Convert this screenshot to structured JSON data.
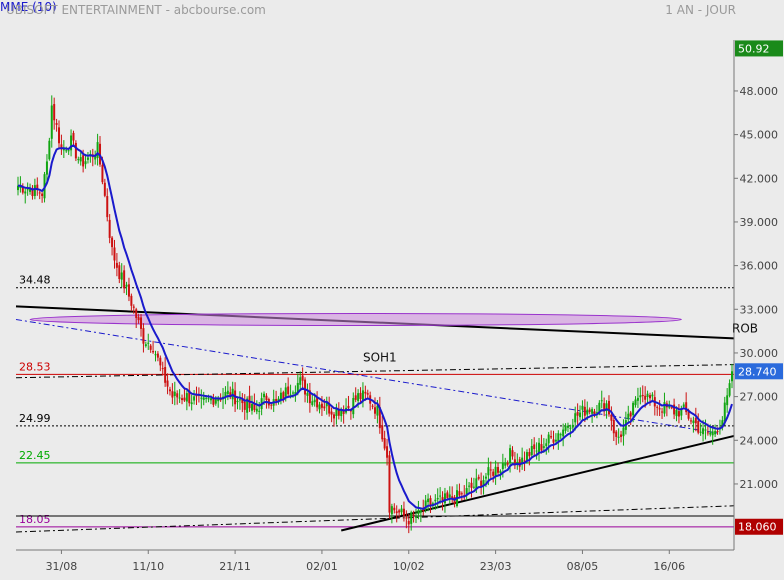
{
  "header": {
    "title": "UBISOFT ENTERTAINMENT - abcbourse.com",
    "period": "1 AN - JOUR",
    "indicator": "MME (10)"
  },
  "chart_data": {
    "type": "candlestick",
    "title": "UBISOFT ENTERTAINMENT - abcbourse.com",
    "ylim": [
      16.6,
      51.5
    ],
    "y_ticks": [
      "48.000",
      "45.000",
      "42.000",
      "39.000",
      "36.000",
      "33.000",
      "30.000",
      "27.000",
      "24.000",
      "21.000"
    ],
    "x_ticks": [
      "31/08",
      "11/10",
      "21/11",
      "02/01",
      "10/02",
      "23/03",
      "08/05",
      "16/06"
    ],
    "price_labels": {
      "high": "50.92",
      "last": "28.740",
      "low": "18.060"
    },
    "levels": [
      {
        "label": "34.48",
        "value": 34.48,
        "color": "#000000",
        "style": "dotted"
      },
      {
        "label": "28.53",
        "value": 28.53,
        "color": "#cc0000",
        "style": "solid"
      },
      {
        "label": "24.99",
        "value": 24.99,
        "color": "#000000",
        "style": "dotted"
      },
      {
        "label": "22.45",
        "value": 22.45,
        "color": "#00aa00",
        "style": "solid"
      },
      {
        "label": "18.05",
        "value": 18.05,
        "color": "#990099",
        "style": "solid"
      }
    ],
    "annotations": [
      {
        "label": "ROB",
        "value": 31.0,
        "slot": 296
      },
      {
        "label": "SOH1",
        "value": 29.0,
        "slot": 150
      }
    ],
    "anchors": [
      [
        0,
        41.5
      ],
      [
        10,
        41.0
      ],
      [
        12,
        43.0
      ],
      [
        14,
        47.0
      ],
      [
        18,
        44.0
      ],
      [
        22,
        44.5
      ],
      [
        26,
        43.0
      ],
      [
        30,
        43.5
      ],
      [
        33,
        44.0
      ],
      [
        35,
        42.0
      ],
      [
        39,
        37.0
      ],
      [
        42,
        35.5
      ],
      [
        47,
        33.5
      ],
      [
        52,
        31.0
      ],
      [
        56,
        30.5
      ],
      [
        60,
        28.5
      ],
      [
        64,
        27.0
      ],
      [
        70,
        27.0
      ],
      [
        76,
        26.5
      ],
      [
        82,
        27.0
      ],
      [
        88,
        27.2
      ],
      [
        94,
        26.5
      ],
      [
        98,
        26.0
      ],
      [
        103,
        27.0
      ],
      [
        107,
        26.5
      ],
      [
        112,
        27.5
      ],
      [
        117,
        28.0
      ],
      [
        121,
        27.0
      ],
      [
        126,
        26.5
      ],
      [
        131,
        26.0
      ],
      [
        137,
        26.3
      ],
      [
        141,
        27.0
      ],
      [
        145,
        27.0
      ],
      [
        149,
        26.0
      ],
      [
        151,
        24.5
      ],
      [
        153,
        23.0
      ],
      [
        154,
        19.5
      ],
      [
        158,
        19.0
      ],
      [
        162,
        18.6
      ],
      [
        166,
        18.8
      ],
      [
        170,
        19.6
      ],
      [
        178,
        19.9
      ],
      [
        184,
        20.2
      ],
      [
        190,
        21.0
      ],
      [
        196,
        21.8
      ],
      [
        200,
        22.2
      ],
      [
        204,
        23.0
      ],
      [
        208,
        22.5
      ],
      [
        212,
        23.1
      ],
      [
        216,
        23.5
      ],
      [
        220,
        24.0
      ],
      [
        224,
        24.5
      ],
      [
        230,
        25.5
      ],
      [
        236,
        26.2
      ],
      [
        240,
        26.3
      ],
      [
        244,
        26.5
      ],
      [
        246,
        25.5
      ],
      [
        248,
        24.0
      ],
      [
        252,
        25.0
      ],
      [
        256,
        26.5
      ],
      [
        258,
        27.5
      ],
      [
        262,
        26.8
      ],
      [
        266,
        26.3
      ],
      [
        272,
        26.0
      ],
      [
        276,
        26.0
      ],
      [
        280,
        25.3
      ],
      [
        284,
        24.5
      ],
      [
        288,
        24.5
      ],
      [
        292,
        25.5
      ],
      [
        295,
        27.5
      ],
      [
        296,
        28.7
      ]
    ],
    "candles": {
      "count": 297,
      "first_slot_close": 41.5,
      "last_close": 28.74
    },
    "series": [
      {
        "name": "MME (10)",
        "type": "line",
        "color": "#1a1acc"
      }
    ]
  }
}
